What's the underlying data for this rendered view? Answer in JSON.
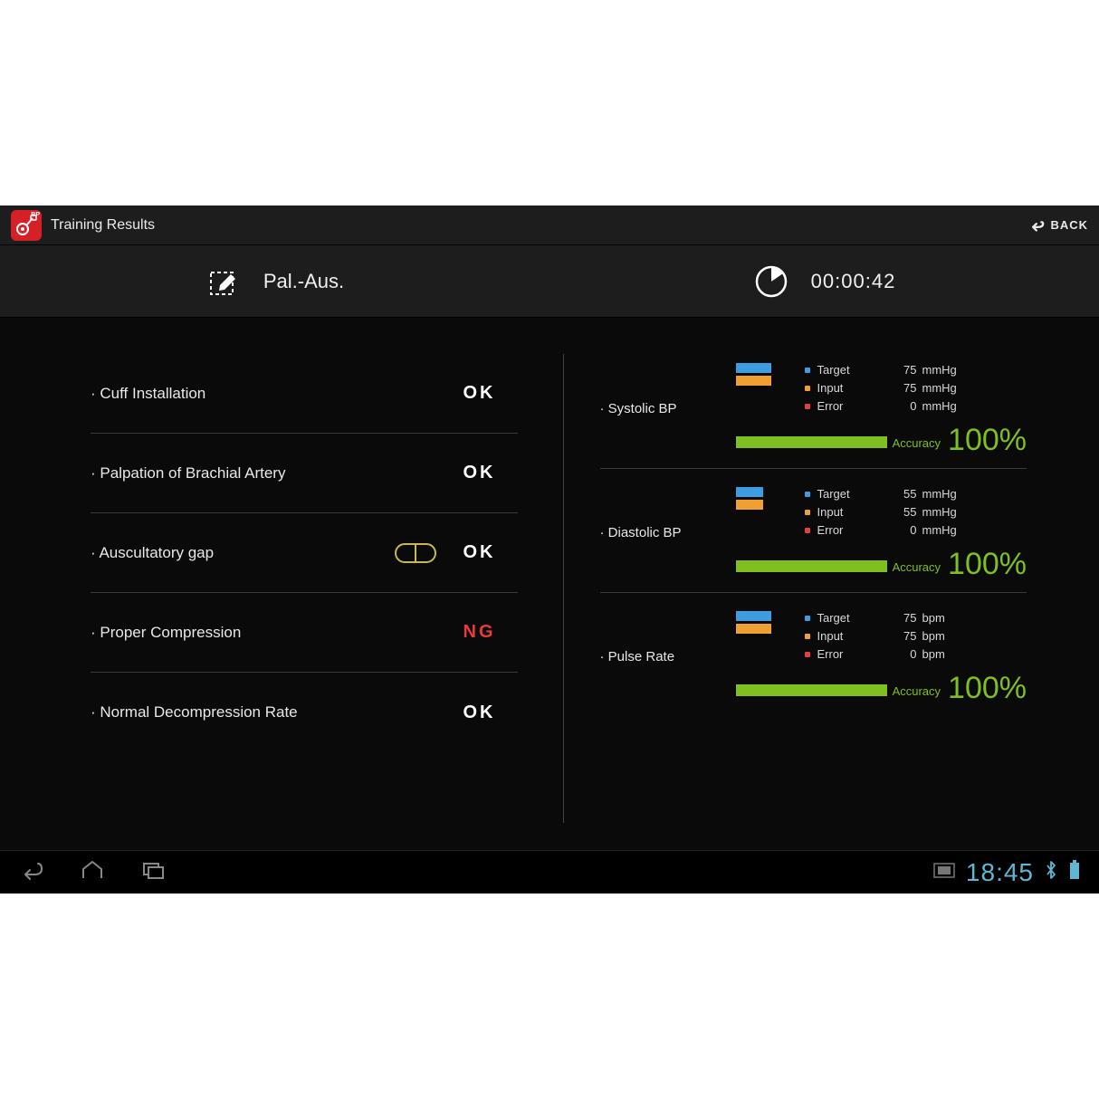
{
  "colors": {
    "bg": "#0a0a0a",
    "panel": "#1d1d1d",
    "text": "#e8e8e8",
    "accent_red": "#d62027",
    "ok": "#ffffff",
    "ng": "#e83a3a",
    "green": "#7fbf1f",
    "target_blue": "#3d9de0",
    "input_orange": "#f0a030",
    "error_red": "#e04040",
    "nav_blue": "#5fb7d4",
    "divider": "#3a3a3a"
  },
  "header": {
    "app_badge": "BP",
    "title": "Training Results",
    "back_label": "BACK"
  },
  "subheader": {
    "mode": "Pal.-Aus.",
    "timer": "00:00:42"
  },
  "checks": [
    {
      "label": "Cuff Installation",
      "status": "OK",
      "status_class": "ok",
      "icon": null
    },
    {
      "label": "Palpation of Brachial Artery",
      "status": "OK",
      "status_class": "ok",
      "icon": null
    },
    {
      "label": "Auscultatory gap",
      "status": "OK",
      "status_class": "ok",
      "icon": "pill"
    },
    {
      "label": "Proper Compression",
      "status": "NG",
      "status_class": "ng",
      "icon": null
    },
    {
      "label": "Normal Decompression Rate",
      "status": "OK",
      "status_class": "ok",
      "icon": null
    }
  ],
  "metrics": [
    {
      "name": "Systolic BP",
      "unit": "mmHg",
      "target": 75,
      "input": 75,
      "error": 0,
      "accuracy_pct": 100,
      "accuracy_label": "Accuracy",
      "bar_target_pct": 65,
      "bar_input_pct": 65
    },
    {
      "name": "Diastolic BP",
      "unit": "mmHg",
      "target": 55,
      "input": 55,
      "error": 0,
      "accuracy_pct": 100,
      "accuracy_label": "Accuracy",
      "bar_target_pct": 50,
      "bar_input_pct": 50
    },
    {
      "name": "Pulse Rate",
      "unit": "bpm",
      "target": 75,
      "input": 75,
      "error": 0,
      "accuracy_pct": 100,
      "accuracy_label": "Accuracy",
      "bar_target_pct": 65,
      "bar_input_pct": 65
    }
  ],
  "legend_labels": {
    "target": "Target",
    "input": "Input",
    "error": "Error"
  },
  "navbar": {
    "time": "18:45"
  }
}
